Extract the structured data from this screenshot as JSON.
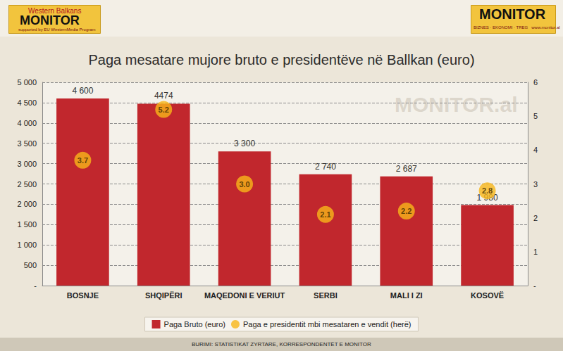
{
  "header": {
    "left_logo": {
      "top": "Western Balkans",
      "name": "MONITOR",
      "note": "supported by EU WesternMedia Program"
    },
    "right_logo": {
      "name": "MONITOR",
      "note": "BIZNES · EKONOMI · TREG",
      "url": "www.monitor.al"
    },
    "watermark": "MONITOR.al",
    "source": "BURIMI: STATISTIKAT ZYRTARE, KORRESPONDENTËT E MONITOR"
  },
  "chart_data": {
    "type": "bar",
    "title": "Paga mesatare mujore bruto e presidentëve në Ballkan (euro)",
    "categories": [
      "BOSNJE",
      "SHQIPËRI",
      "MAQEDONI E VERIUT",
      "SERBI",
      "MALI I ZI",
      "KOSOVË"
    ],
    "series": [
      {
        "name": "Paga Bruto (euro)",
        "type": "bar",
        "color": "#c1272d",
        "values": [
          4600,
          4474,
          3300,
          2740,
          2687,
          1980
        ],
        "value_labels": [
          "4 600",
          "4474",
          "3 300",
          "2 740",
          "2 687",
          "1 980"
        ]
      },
      {
        "name": "Paga e presidentit mbi mesataren e vendit (herë)",
        "type": "scatter",
        "axis": "y2",
        "color": "#f7b719",
        "marker": "circle",
        "values": [
          3.7,
          5.2,
          3.0,
          2.1,
          2.2,
          2.8
        ],
        "value_labels": [
          "3.7",
          "5.2",
          "3.0",
          "2.1",
          "2.2",
          "2.8"
        ]
      }
    ],
    "ylim": [
      0,
      5000
    ],
    "yticks": [
      {
        "value": 0,
        "label": "-"
      },
      500,
      {
        "value": 1000,
        "label": "1 000"
      },
      {
        "value": 1500,
        "label": "1 500"
      },
      {
        "value": 2000,
        "label": "2 000"
      },
      {
        "value": 2500,
        "label": "2 500"
      },
      {
        "value": 3000,
        "label": "3 000"
      },
      {
        "value": 3500,
        "label": "3 500"
      },
      {
        "value": 4000,
        "label": "4 000"
      },
      {
        "value": 4500,
        "label": "4 500"
      },
      {
        "value": 5000,
        "label": "5 000"
      }
    ],
    "y2lim": [
      0,
      6
    ],
    "y2ticks": [
      {
        "value": 0,
        "label": "-"
      },
      1,
      2,
      3,
      4,
      5,
      6
    ],
    "grid": true,
    "legend": "bottom",
    "data_labels": true
  }
}
